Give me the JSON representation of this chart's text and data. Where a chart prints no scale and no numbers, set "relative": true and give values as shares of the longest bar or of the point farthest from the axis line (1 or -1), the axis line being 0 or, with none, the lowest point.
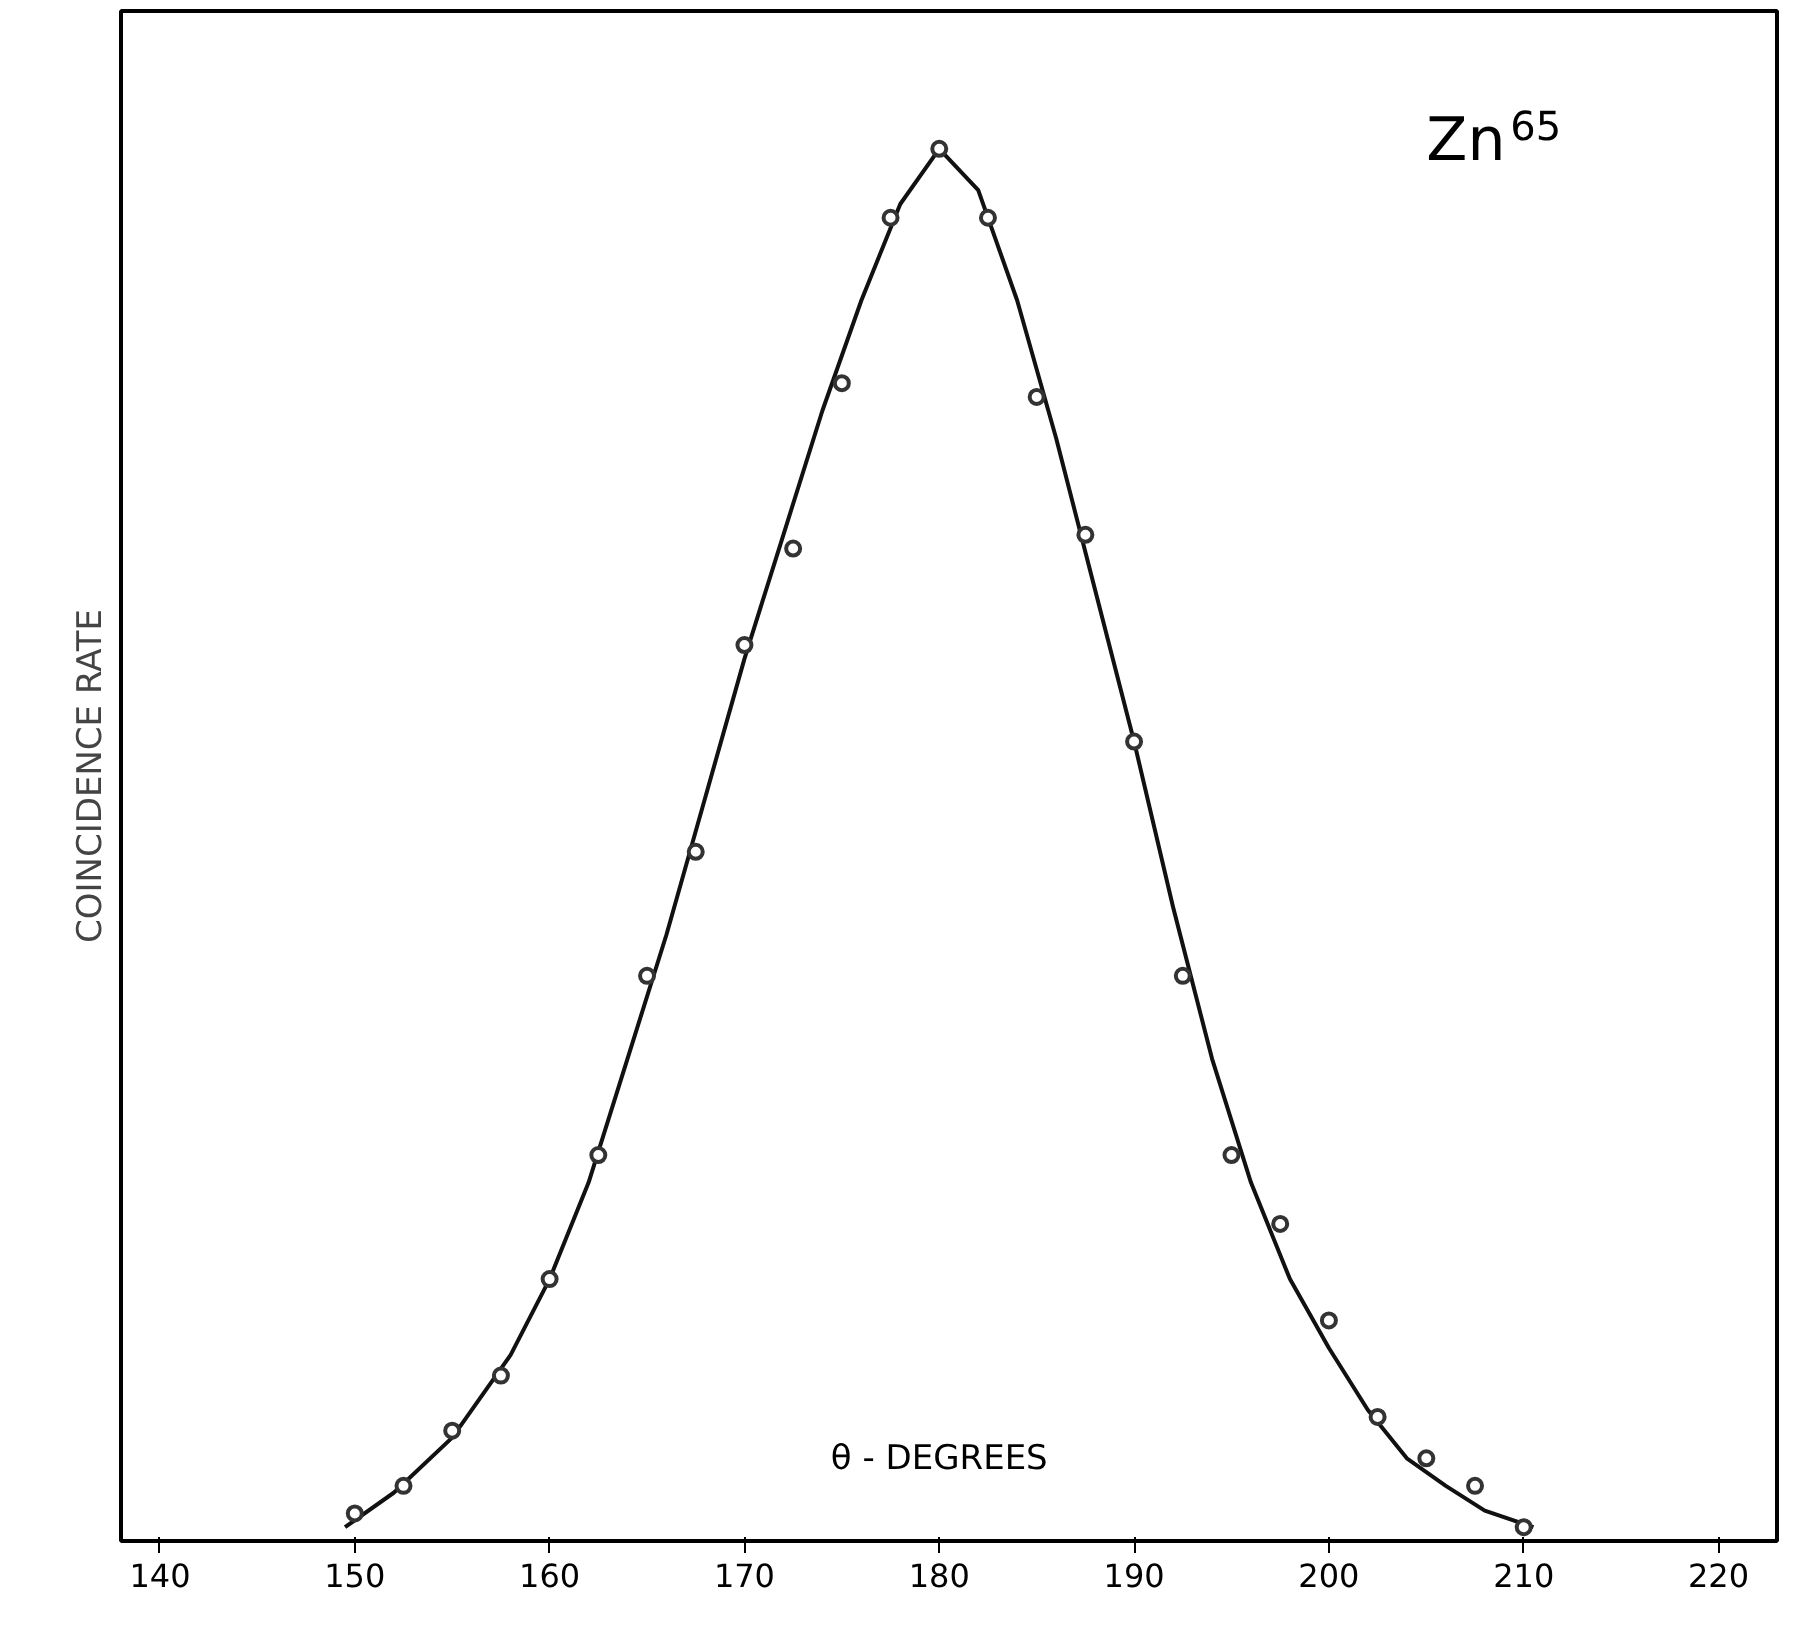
{
  "chart_data": {
    "type": "scatter",
    "relative": true,
    "xlabel": "θ - DEGREES",
    "ylabel": "COINCIDENCE RATE",
    "annotations": [
      "Zn$^{65}$"
    ],
    "xlim": [
      138,
      223
    ],
    "xticks": [
      140,
      150,
      160,
      170,
      180,
      190,
      200,
      210,
      220
    ],
    "grid": false,
    "tick_labels": "x",
    "series": [
      {
        "marker": "circle",
        "color": "#333333",
        "x": [
          150,
          152.5,
          155,
          157.5,
          160,
          162.5,
          165,
          167.5,
          170,
          172.5,
          175,
          177.5,
          180,
          182.5,
          185,
          187.5,
          190,
          192.5,
          195,
          197.5,
          200,
          202.5,
          205,
          207.5,
          210
        ],
        "values": [
          0.01,
          0.03,
          0.07,
          0.11,
          0.18,
          0.27,
          0.4,
          0.49,
          0.64,
          0.71,
          0.83,
          0.95,
          1.0,
          0.95,
          0.82,
          0.72,
          0.57,
          0.4,
          0.27,
          0.22,
          0.15,
          0.08,
          0.05,
          0.03,
          0.0
        ]
      },
      {
        "type": "line",
        "line_style": "solid",
        "marker": "none",
        "color": "#111111",
        "x": [
          149.5,
          152,
          155,
          158,
          160,
          162,
          164,
          166,
          168,
          170,
          172,
          174,
          176,
          178,
          180,
          182,
          184,
          186,
          188,
          190,
          192,
          194,
          196,
          198,
          200,
          202,
          204,
          206,
          208,
          210.5
        ],
        "values": [
          0.0,
          0.025,
          0.065,
          0.125,
          0.18,
          0.25,
          0.34,
          0.43,
          0.53,
          0.63,
          0.72,
          0.81,
          0.89,
          0.96,
          1.0,
          0.97,
          0.89,
          0.79,
          0.68,
          0.57,
          0.45,
          0.34,
          0.25,
          0.18,
          0.13,
          0.085,
          0.05,
          0.03,
          0.012,
          0.0
        ]
      }
    ]
  }
}
